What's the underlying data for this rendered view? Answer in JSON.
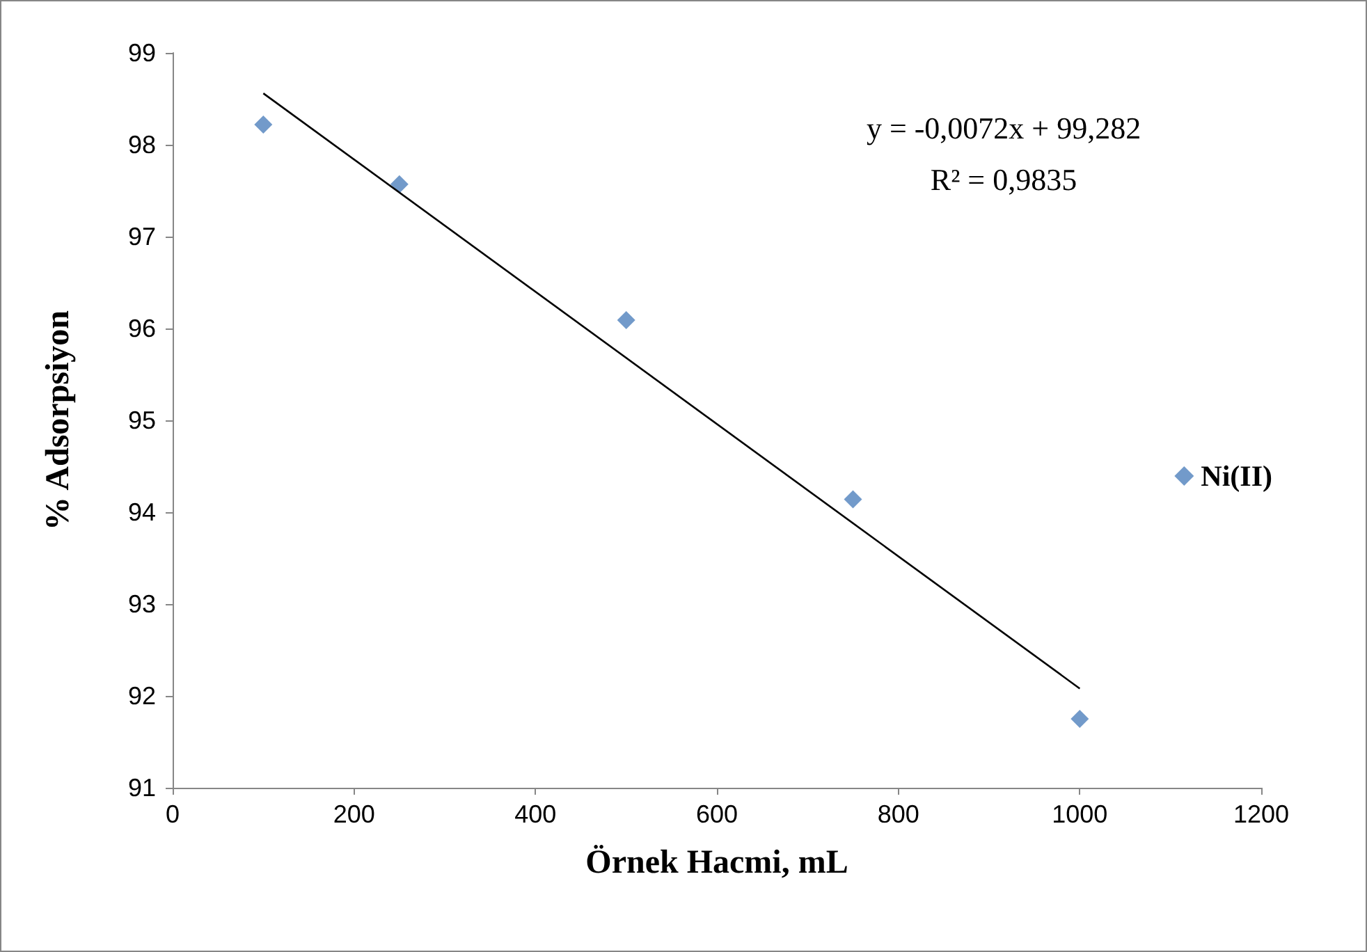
{
  "chart_data": {
    "type": "scatter",
    "xlabel": "Örnek Hacmi, mL",
    "ylabel": "% Adsorpsiyon",
    "annotations": [
      "y = -0,0072x + 99,282",
      "R² = 0,9835"
    ],
    "series": [
      {
        "name": "Ni(II)",
        "type": "scatter",
        "color": "#4f81bd",
        "x": [
          100,
          250,
          500,
          750,
          1000
        ],
        "values": [
          98.22,
          97.57,
          96.09,
          94.14,
          91.75
        ],
        "marker": "diamond"
      },
      {
        "type": "line",
        "color": "#000000",
        "x": [
          100,
          1000
        ],
        "values": [
          98.56,
          92.08
        ],
        "marker": "none",
        "line_style": "solid"
      }
    ],
    "xlim": [
      0,
      1200
    ],
    "xticks": [
      0,
      200,
      400,
      600,
      800,
      1000,
      1200
    ],
    "ylim": [
      91,
      99
    ],
    "yticks": [
      91,
      92,
      93,
      94,
      95,
      96,
      97,
      98,
      99
    ],
    "grid": false,
    "legend": "right"
  }
}
